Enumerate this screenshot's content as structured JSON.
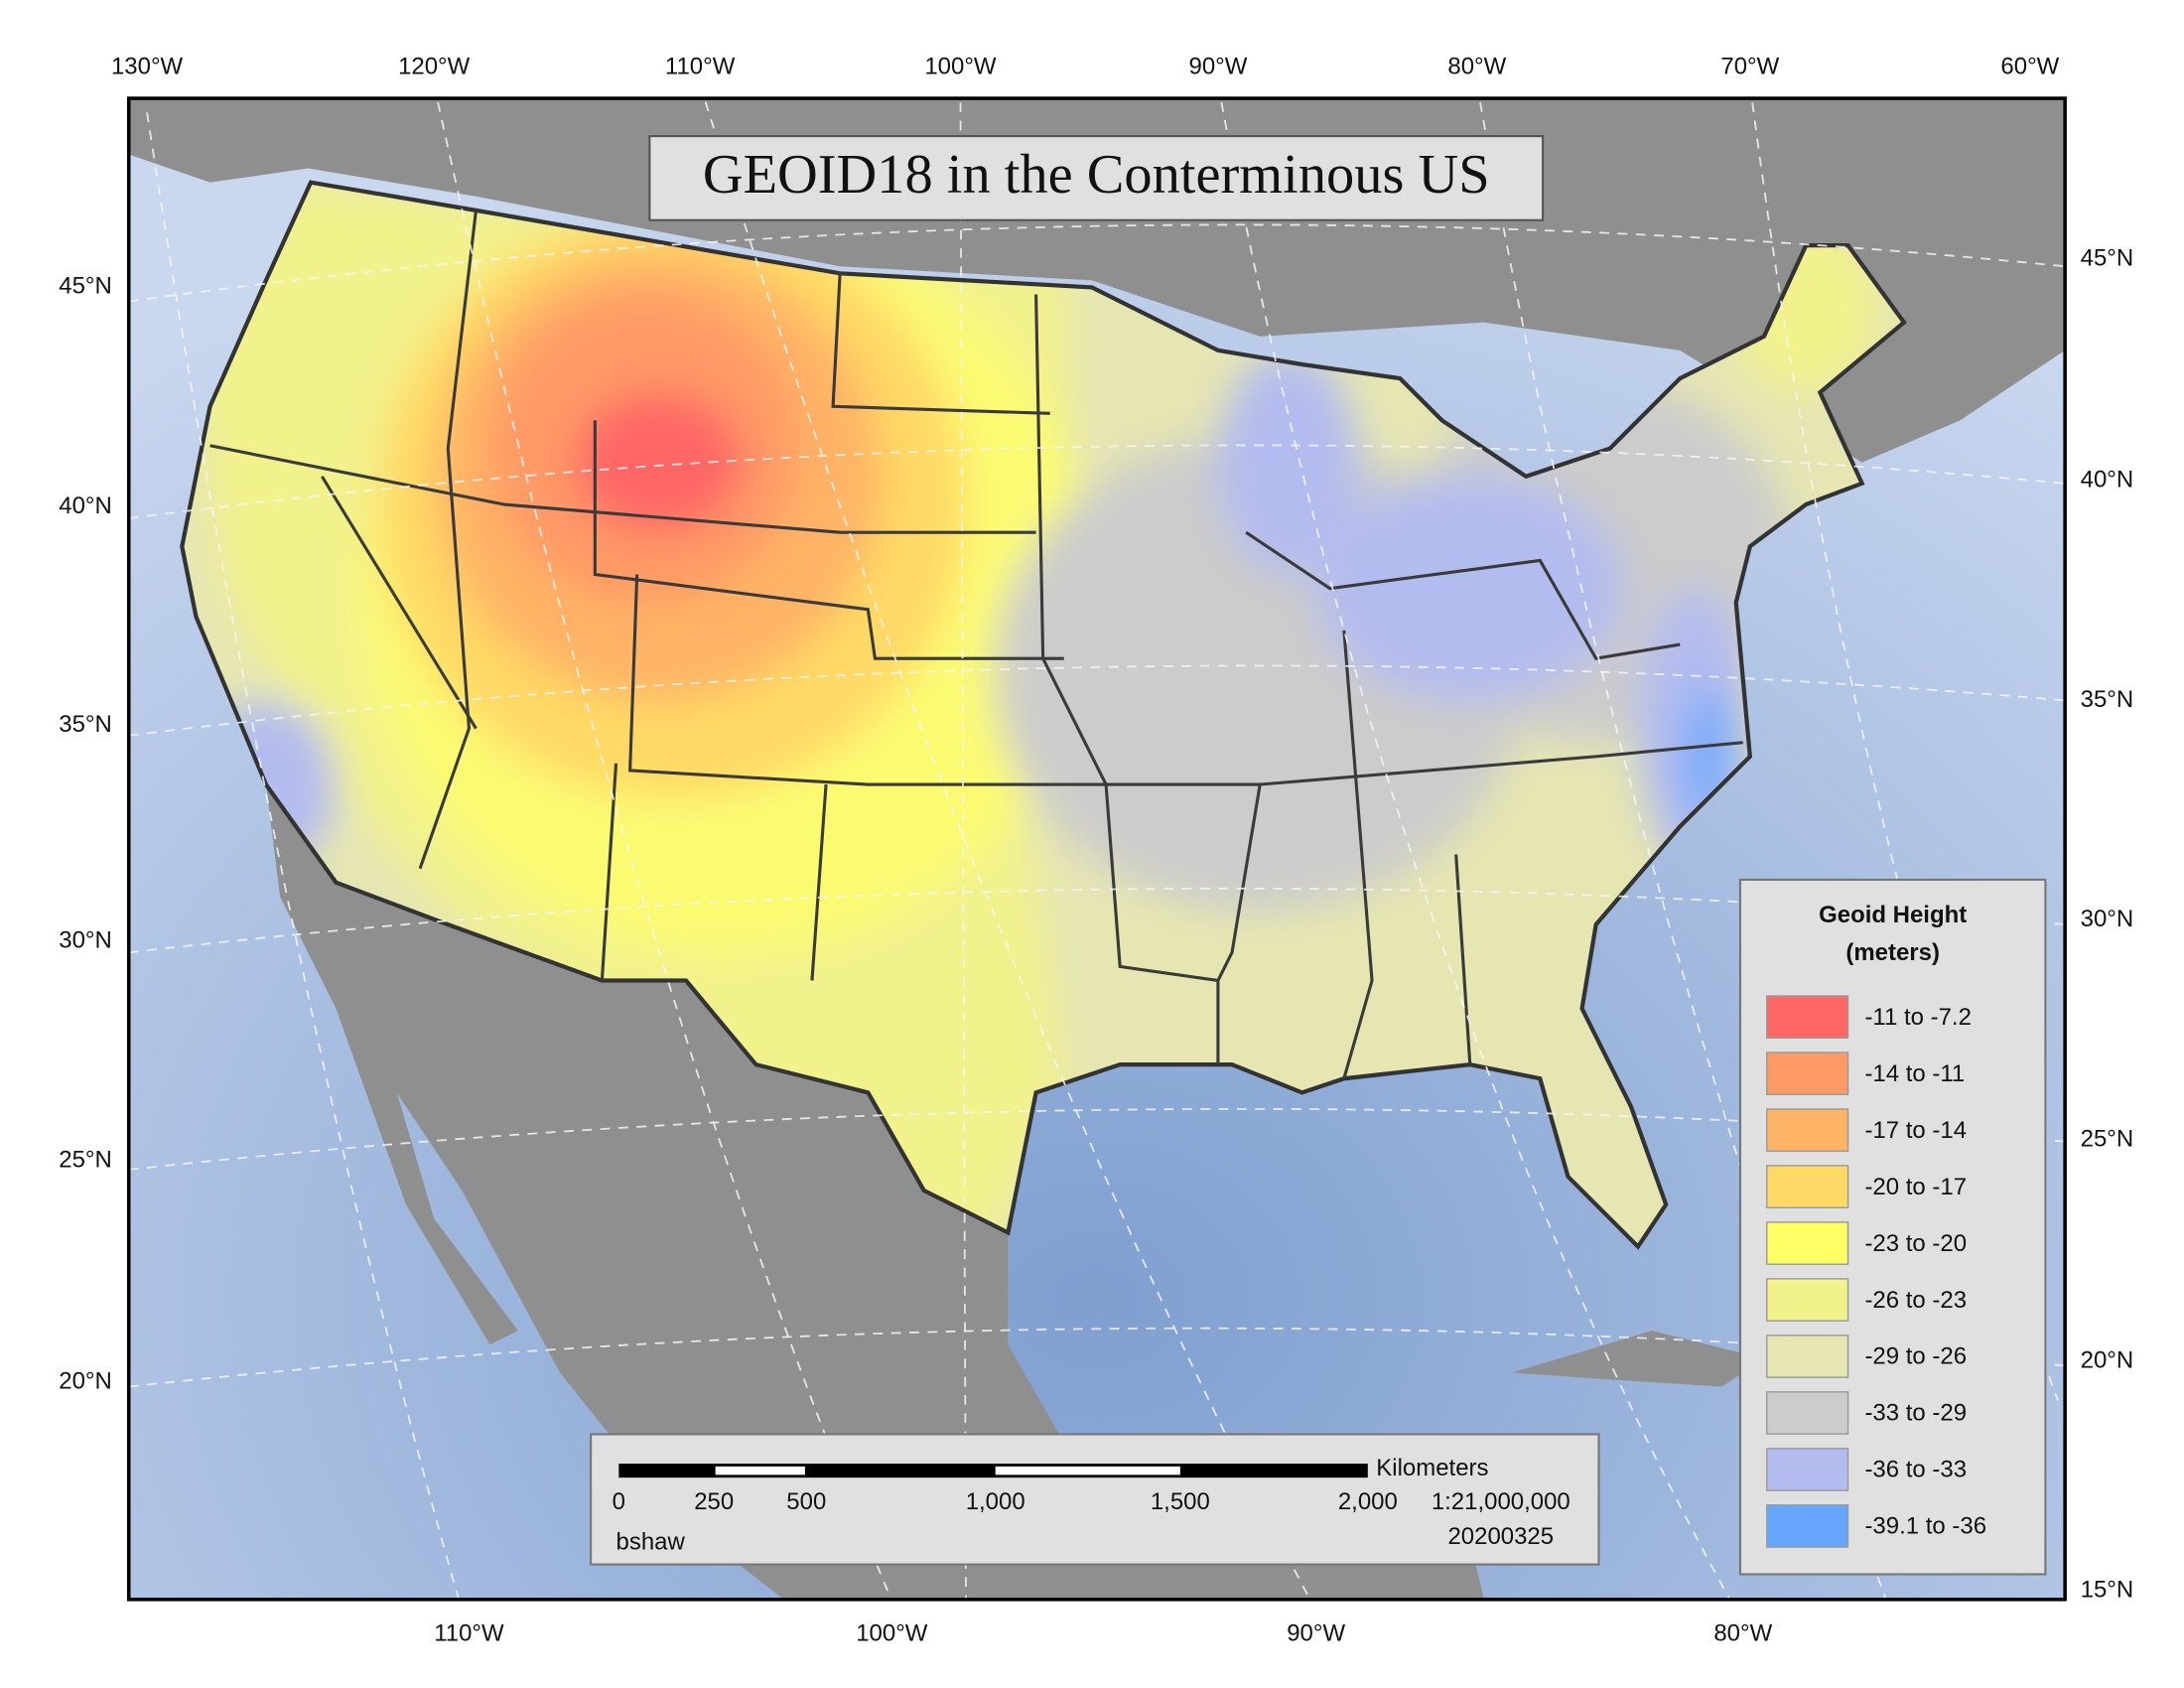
{
  "title": "GEOID18 in the Conterminous US",
  "top_longitudes": [
    "130°W",
    "120°W",
    "110°W",
    "100°W",
    "90°W",
    "80°W",
    "70°W",
    "60°W"
  ],
  "bottom_longitudes": [
    "110°W",
    "100°W",
    "90°W",
    "80°W"
  ],
  "left_latitudes": [
    "45°N",
    "40°N",
    "35°N",
    "30°N",
    "25°N",
    "20°N"
  ],
  "right_latitudes": [
    "45°N",
    "40°N",
    "35°N",
    "30°N",
    "25°N",
    "20°N",
    "15°N"
  ],
  "legend": {
    "title_lines": [
      "Geoid Height",
      "(meters)"
    ],
    "items": [
      {
        "label": "-11 to -7.2",
        "color": "#ff6666"
      },
      {
        "label": "-14 to -11",
        "color": "#ff9966"
      },
      {
        "label": "-17 to -14",
        "color": "#ffb366"
      },
      {
        "label": "-20 to -17",
        "color": "#ffd966"
      },
      {
        "label": "-23 to -20",
        "color": "#ffff66"
      },
      {
        "label": "-26 to -23",
        "color": "#f2f28c"
      },
      {
        "label": "-29 to -26",
        "color": "#e6e6b3"
      },
      {
        "label": "-33 to -29",
        "color": "#cccccc"
      },
      {
        "label": "-36 to -33",
        "color": "#b3bcef"
      },
      {
        "label": "-39.1 to -36",
        "color": "#66a6ff"
      }
    ]
  },
  "scale_bar": {
    "unit": "Kilometers",
    "labels": [
      "0",
      "250",
      "500",
      "1,000",
      "1,500",
      "2,000"
    ],
    "scale": "1:21,000,000"
  },
  "credit": {
    "author": "bshaw",
    "date": "20200325"
  }
}
